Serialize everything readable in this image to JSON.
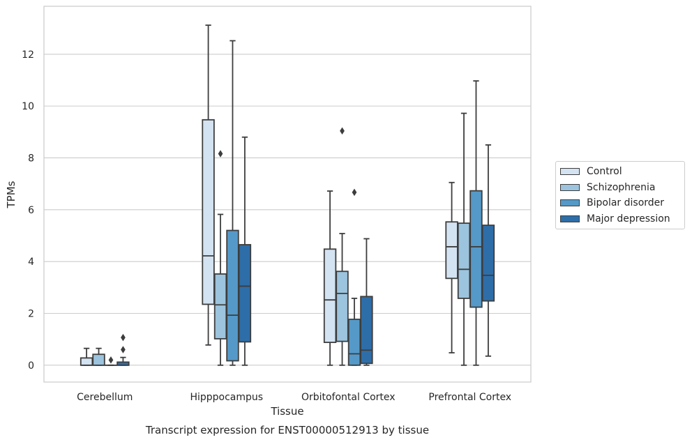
{
  "chart_data": {
    "type": "box",
    "title": "Transcript expression for ENST00000512913 by tissue",
    "xlabel": "Tissue",
    "ylabel": "TPMs",
    "ylim": [
      -0.65,
      13.85
    ],
    "yticks": [
      0,
      2,
      4,
      6,
      8,
      10,
      12
    ],
    "grid": true,
    "legend_position": "right",
    "categories": [
      "Cerebellum",
      "Hipppocampus",
      "Orbitofontal Cortex",
      "Prefrontal Cortex"
    ],
    "series": [
      {
        "name": "Control",
        "color": "#d4e3f2",
        "boxes": [
          {
            "whisker_low": 0,
            "q1": 0,
            "median": 0,
            "q3": 0.28,
            "whisker_high": 0.65,
            "outliers": []
          },
          {
            "whisker_low": 0.78,
            "q1": 2.35,
            "median": 4.22,
            "q3": 9.47,
            "whisker_high": 13.12,
            "outliers": []
          },
          {
            "whisker_low": 0,
            "q1": 0.88,
            "median": 2.52,
            "q3": 4.48,
            "whisker_high": 6.72,
            "outliers": []
          },
          {
            "whisker_low": 0.48,
            "q1": 3.35,
            "median": 4.57,
            "q3": 5.53,
            "whisker_high": 7.05,
            "outliers": []
          }
        ]
      },
      {
        "name": "Schizophrenia",
        "color": "#9cc4de",
        "boxes": [
          {
            "whisker_low": 0,
            "q1": 0,
            "median": 0,
            "q3": 0.42,
            "whisker_high": 0.65,
            "outliers": []
          },
          {
            "whisker_low": 0,
            "q1": 1.02,
            "median": 2.33,
            "q3": 3.52,
            "whisker_high": 5.82,
            "outliers": [
              8.16
            ]
          },
          {
            "whisker_low": 0,
            "q1": 0.92,
            "median": 2.77,
            "q3": 3.62,
            "whisker_high": 5.08,
            "outliers": [
              9.04
            ]
          },
          {
            "whisker_low": 0,
            "q1": 2.58,
            "median": 3.7,
            "q3": 5.48,
            "whisker_high": 9.72,
            "outliers": []
          }
        ]
      },
      {
        "name": "Bipolar disorder",
        "color": "#5599c8",
        "boxes": [
          {
            "whisker_low": 0,
            "q1": 0,
            "median": 0,
            "q3": 0,
            "whisker_high": 0,
            "outliers": [
              0.2
            ]
          },
          {
            "whisker_low": 0,
            "q1": 0.17,
            "median": 1.93,
            "q3": 5.2,
            "whisker_high": 12.52,
            "outliers": []
          },
          {
            "whisker_low": 0,
            "q1": 0,
            "median": 0.44,
            "q3": 1.77,
            "whisker_high": 2.58,
            "outliers": [
              6.67
            ]
          },
          {
            "whisker_low": 0,
            "q1": 2.24,
            "median": 4.57,
            "q3": 6.73,
            "whisker_high": 10.97,
            "outliers": []
          }
        ]
      },
      {
        "name": "Major depression",
        "color": "#2e6ea8",
        "boxes": [
          {
            "whisker_low": 0,
            "q1": 0,
            "median": 0,
            "q3": 0.12,
            "whisker_high": 0.3,
            "outliers": [
              0.6,
              1.07
            ]
          },
          {
            "whisker_low": 0,
            "q1": 0.9,
            "median": 3.05,
            "q3": 4.65,
            "whisker_high": 8.8,
            "outliers": []
          },
          {
            "whisker_low": 0,
            "q1": 0.07,
            "median": 0.58,
            "q3": 2.65,
            "whisker_high": 4.88,
            "outliers": []
          },
          {
            "whisker_low": 0.35,
            "q1": 2.48,
            "median": 3.47,
            "q3": 5.4,
            "whisker_high": 8.5,
            "outliers": []
          }
        ]
      }
    ]
  }
}
